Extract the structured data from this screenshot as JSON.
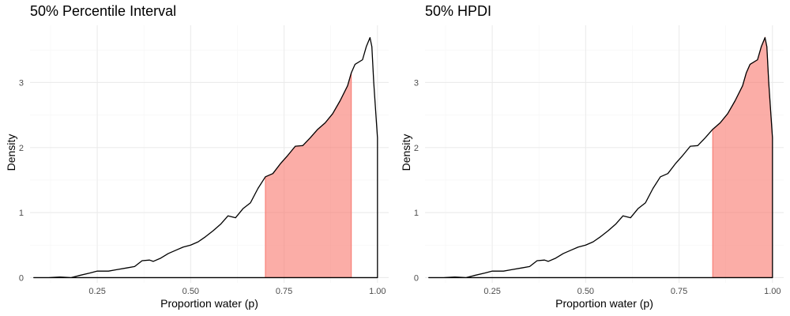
{
  "chart_data": [
    {
      "type": "area",
      "title": "50% Percentile Interval",
      "xlabel": "Proportion water (p)",
      "ylabel": "Density",
      "xlim": [
        0.07,
        1.03
      ],
      "ylim": [
        -0.08,
        3.88
      ],
      "x_ticks": [
        0.25,
        0.5,
        0.75,
        1.0
      ],
      "x_tick_labels": [
        "0.25",
        "0.50",
        "0.75",
        "1.00"
      ],
      "y_ticks": [
        0,
        1,
        2,
        3
      ],
      "y_tick_labels": [
        "0",
        "1",
        "2",
        "3"
      ],
      "grid": true,
      "shaded_interval": [
        0.7,
        0.93
      ],
      "shade_color": "#f8766d",
      "density": {
        "x": [
          0.08,
          0.12,
          0.15,
          0.18,
          0.2,
          0.23,
          0.25,
          0.28,
          0.3,
          0.33,
          0.35,
          0.37,
          0.39,
          0.4,
          0.42,
          0.44,
          0.46,
          0.48,
          0.5,
          0.52,
          0.54,
          0.56,
          0.58,
          0.6,
          0.62,
          0.64,
          0.66,
          0.68,
          0.7,
          0.72,
          0.74,
          0.76,
          0.78,
          0.8,
          0.82,
          0.84,
          0.86,
          0.88,
          0.9,
          0.92,
          0.93,
          0.94,
          0.96,
          0.97,
          0.98,
          0.985,
          0.99,
          1.0
        ],
        "y": [
          0.0,
          0.0,
          0.01,
          0.0,
          0.03,
          0.07,
          0.1,
          0.1,
          0.12,
          0.15,
          0.17,
          0.26,
          0.27,
          0.25,
          0.3,
          0.37,
          0.42,
          0.47,
          0.5,
          0.55,
          0.63,
          0.72,
          0.82,
          0.95,
          0.92,
          1.06,
          1.15,
          1.37,
          1.55,
          1.6,
          1.75,
          1.88,
          2.02,
          2.03,
          2.15,
          2.28,
          2.38,
          2.52,
          2.72,
          2.95,
          3.15,
          3.28,
          3.35,
          3.55,
          3.69,
          3.55,
          3.0,
          2.15
        ]
      }
    },
    {
      "type": "area",
      "title": "50% HPDI",
      "xlabel": "Proportion water (p)",
      "ylabel": "Density",
      "xlim": [
        0.07,
        1.03
      ],
      "ylim": [
        -0.08,
        3.88
      ],
      "x_ticks": [
        0.25,
        0.5,
        0.75,
        1.0
      ],
      "x_tick_labels": [
        "0.25",
        "0.50",
        "0.75",
        "1.00"
      ],
      "y_ticks": [
        0,
        1,
        2,
        3
      ],
      "y_tick_labels": [
        "0",
        "1",
        "2",
        "3"
      ],
      "grid": true,
      "shaded_interval": [
        0.84,
        1.0
      ],
      "shade_color": "#f8766d",
      "density": {
        "x": [
          0.08,
          0.12,
          0.15,
          0.18,
          0.2,
          0.23,
          0.25,
          0.28,
          0.3,
          0.33,
          0.35,
          0.37,
          0.39,
          0.4,
          0.42,
          0.44,
          0.46,
          0.48,
          0.5,
          0.52,
          0.54,
          0.56,
          0.58,
          0.6,
          0.62,
          0.64,
          0.66,
          0.68,
          0.7,
          0.72,
          0.74,
          0.76,
          0.78,
          0.8,
          0.82,
          0.84,
          0.86,
          0.88,
          0.9,
          0.92,
          0.93,
          0.94,
          0.96,
          0.97,
          0.98,
          0.985,
          0.99,
          1.0
        ],
        "y": [
          0.0,
          0.0,
          0.01,
          0.0,
          0.03,
          0.07,
          0.1,
          0.1,
          0.12,
          0.15,
          0.17,
          0.26,
          0.27,
          0.25,
          0.3,
          0.37,
          0.42,
          0.47,
          0.5,
          0.55,
          0.63,
          0.72,
          0.82,
          0.95,
          0.92,
          1.06,
          1.15,
          1.37,
          1.55,
          1.6,
          1.75,
          1.88,
          2.02,
          2.03,
          2.15,
          2.28,
          2.38,
          2.52,
          2.72,
          2.95,
          3.15,
          3.28,
          3.35,
          3.55,
          3.69,
          3.55,
          3.0,
          2.15
        ]
      }
    }
  ]
}
